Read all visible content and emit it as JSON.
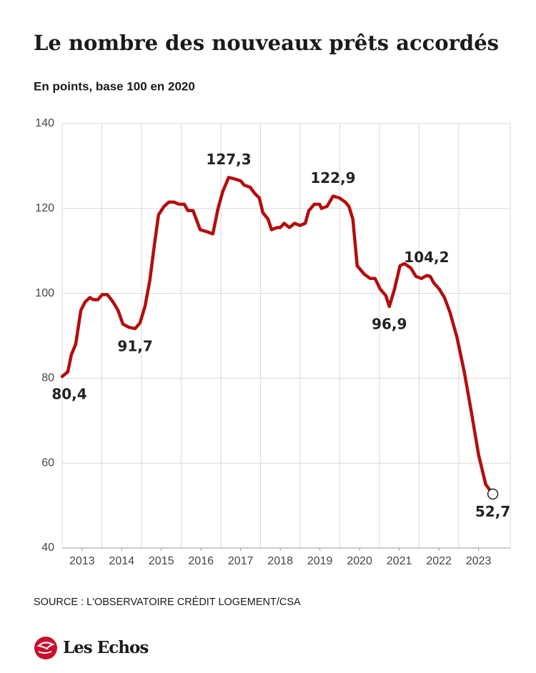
{
  "chart_data": {
    "type": "line",
    "title": "Le nombre des nouveaux prêts accordés",
    "subtitle": "En points, base 100 en 2020",
    "source": "SOURCE : L'OBSERVATOIRE CRÉDIT LOGEMENT/CSA",
    "brand": "Les Echos",
    "color": "#b40d0d",
    "grid": true,
    "xlim": [
      2013,
      2024.3
    ],
    "xticks": [
      {
        "value": 2013.5,
        "label": "2013"
      },
      {
        "value": 2014.5,
        "label": "2014"
      },
      {
        "value": 2015.5,
        "label": "2015"
      },
      {
        "value": 2016.5,
        "label": "2016"
      },
      {
        "value": 2017.5,
        "label": "2017"
      },
      {
        "value": 2018.5,
        "label": "2018"
      },
      {
        "value": 2019.5,
        "label": "2019"
      },
      {
        "value": 2020.5,
        "label": "2020"
      },
      {
        "value": 2021.5,
        "label": "2021"
      },
      {
        "value": 2022.5,
        "label": "2022"
      },
      {
        "value": 2023.5,
        "label": "2023"
      }
    ],
    "ylim": [
      40,
      140
    ],
    "yticks": [
      40,
      60,
      80,
      100,
      120,
      140
    ],
    "x": [
      2013.0,
      2013.14,
      2013.23,
      2013.34,
      2013.47,
      2013.58,
      2013.7,
      2013.79,
      2013.9,
      2014.01,
      2014.14,
      2014.28,
      2014.41,
      2014.53,
      2014.68,
      2014.84,
      2014.96,
      2015.09,
      2015.21,
      2015.32,
      2015.43,
      2015.57,
      2015.69,
      2015.82,
      2015.95,
      2016.08,
      2016.17,
      2016.3,
      2016.48,
      2016.66,
      2016.8,
      2016.93,
      2017.05,
      2017.2,
      2017.34,
      2017.5,
      2017.59,
      2017.74,
      2017.86,
      2017.97,
      2018.06,
      2018.19,
      2018.28,
      2018.42,
      2018.5,
      2018.6,
      2018.73,
      2018.86,
      2019.0,
      2019.13,
      2019.22,
      2019.36,
      2019.49,
      2019.54,
      2019.68,
      2019.83,
      2019.99,
      2020.14,
      2020.23,
      2020.33,
      2020.44,
      2020.62,
      2020.77,
      2020.89,
      2021.02,
      2021.16,
      2021.25,
      2021.38,
      2021.52,
      2021.63,
      2021.79,
      2021.92,
      2022.06,
      2022.19,
      2022.28,
      2022.37,
      2022.51,
      2022.64,
      2022.78,
      2022.96,
      2023.14,
      2023.32,
      2023.5,
      2023.68,
      2023.86
    ],
    "values": [
      80.4,
      81.5,
      85.5,
      88,
      96,
      98,
      99,
      98.5,
      98.5,
      99.7,
      99.7,
      98,
      96,
      92.8,
      92,
      91.7,
      93,
      97,
      103,
      111,
      118.5,
      120.5,
      121.5,
      121.5,
      121,
      121,
      119.5,
      119.5,
      115,
      114.5,
      114,
      120,
      124,
      127.3,
      127,
      126.5,
      125.5,
      125,
      123.5,
      122.5,
      119,
      117.5,
      115,
      115.5,
      115.5,
      116.5,
      115.5,
      116.5,
      116,
      116.5,
      119.5,
      121,
      121,
      120,
      120.5,
      122.9,
      122.5,
      121.5,
      120.5,
      117.5,
      106.5,
      104.5,
      103.5,
      103.5,
      101,
      99.5,
      96.9,
      101,
      106.5,
      107,
      106,
      104,
      103.5,
      104.2,
      104,
      102.5,
      101,
      99,
      95.5,
      89.5,
      81.5,
      72,
      62,
      55,
      52.7
    ],
    "value_labels": [
      "80,4",
      null,
      null,
      null,
      null,
      null,
      null,
      null,
      null,
      null,
      null,
      null,
      null,
      null,
      null,
      "91,7",
      null,
      null,
      null,
      null,
      null,
      null,
      null,
      null,
      null,
      null,
      null,
      null,
      null,
      null,
      null,
      null,
      null,
      "127,3",
      null,
      null,
      null,
      null,
      null,
      null,
      null,
      null,
      null,
      null,
      null,
      null,
      null,
      null,
      null,
      null,
      null,
      null,
      null,
      null,
      null,
      "122,9",
      null,
      null,
      null,
      null,
      null,
      null,
      null,
      null,
      null,
      null,
      "96,9",
      null,
      null,
      null,
      null,
      null,
      null,
      "104,2",
      null,
      null,
      null,
      null,
      null,
      null,
      null,
      null,
      null,
      null,
      "52,7"
    ]
  }
}
